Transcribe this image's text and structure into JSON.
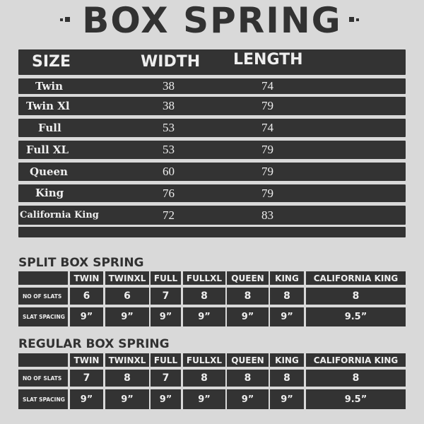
{
  "title": "BOX SPRING",
  "main_table": {
    "headers": [
      "SIZE",
      "WIDTH",
      "LENGTH"
    ],
    "rows": [
      {
        "size": "Twin",
        "width": "38",
        "length": "74"
      },
      {
        "size": "Twin Xl",
        "width": "38",
        "length": "79"
      },
      {
        "size": "Full",
        "width": "53",
        "length": "74"
      },
      {
        "size": "Full XL",
        "width": "53",
        "length": "79"
      },
      {
        "size": "Queen",
        "width": "60",
        "length": "79"
      },
      {
        "size": "King",
        "width": "76",
        "length": "79"
      },
      {
        "size": "California King",
        "width": "72",
        "length": "83"
      }
    ]
  },
  "split": {
    "title": "SPLIT BOX SPRING",
    "columns": [
      "TWIN",
      "TWINXL",
      "FULL",
      "FULLXL",
      "QUEEN",
      "KING",
      "CALIFORNIA KING"
    ],
    "row_labels": [
      "NO OF SLATS",
      "SLAT SPACING"
    ],
    "slats": [
      "6",
      "6",
      "7",
      "8",
      "8",
      "8",
      "8"
    ],
    "spacing": [
      "9”",
      "9”",
      "9”",
      "9”",
      "9”",
      "9”",
      "9.5”"
    ]
  },
  "regular": {
    "title": "REGULAR BOX SPRING",
    "columns": [
      "TWIN",
      "TWINXL",
      "FULL",
      "FULLXL",
      "QUEEN",
      "KING",
      "CALIFORNIA KING"
    ],
    "row_labels": [
      "NO OF SLATS",
      "SLAT SPACING"
    ],
    "slats": [
      "7",
      "8",
      "7",
      "8",
      "8",
      "8",
      "8"
    ],
    "spacing": [
      "9”",
      "9”",
      "9”",
      "9”",
      "9”",
      "9”",
      "9.5”"
    ]
  }
}
